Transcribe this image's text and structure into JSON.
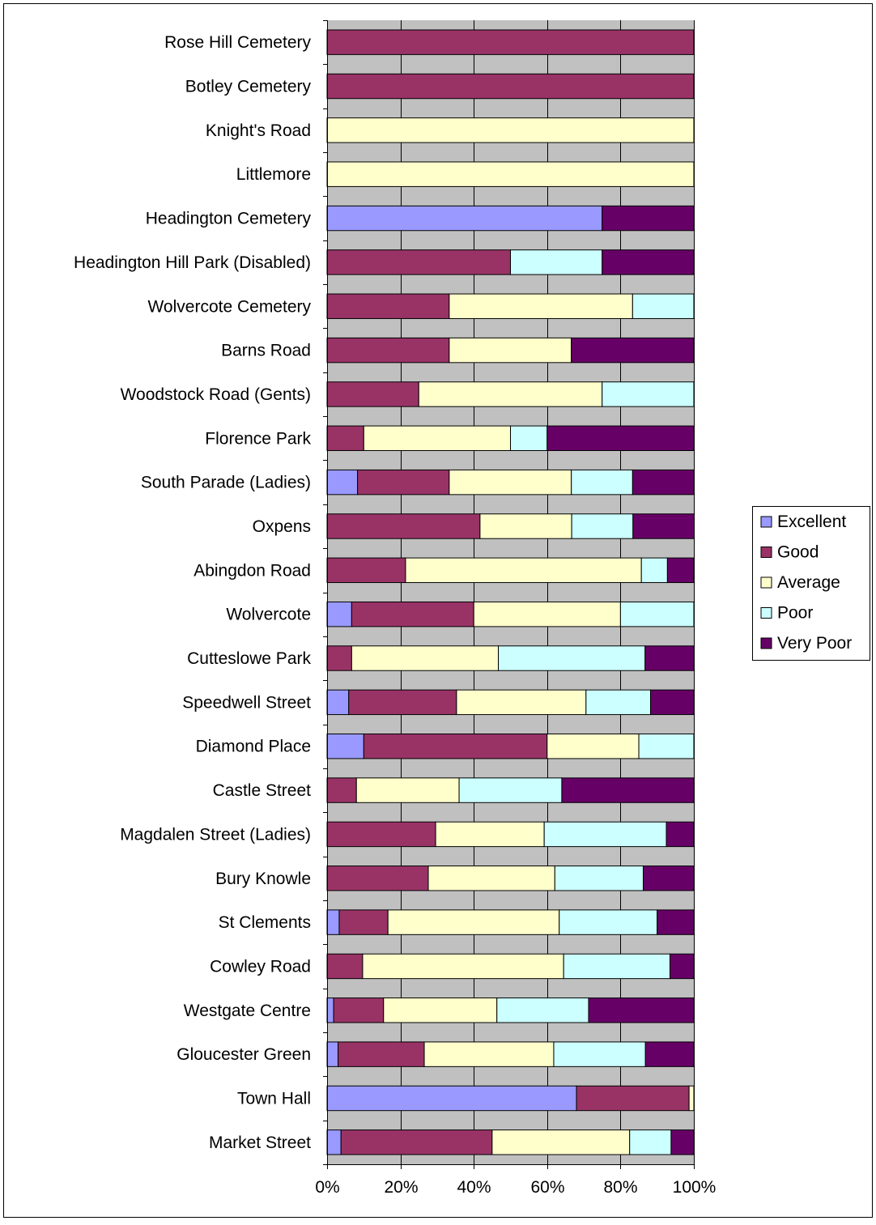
{
  "colors": {
    "plot_background": "#c0c0c0",
    "gridline": "#000000",
    "excellent": "#9999ff",
    "good": "#993366",
    "average": "#ffffcc",
    "poor": "#ccffff",
    "very_poor": "#660066"
  },
  "chart_data": {
    "type": "bar",
    "orientation": "horizontal",
    "stacking": "percent",
    "title": "",
    "xlabel": "",
    "ylabel": "",
    "xlim": [
      0,
      100
    ],
    "x_ticks": [
      "0%",
      "20%",
      "40%",
      "60%",
      "80%",
      "100%"
    ],
    "grid": true,
    "legend_position": "right",
    "categories": [
      "Rose Hill Cemetery",
      "Botley Cemetery",
      "Knight's Road",
      "Littlemore",
      "Headington Cemetery",
      "Headington Hill Park (Disabled)",
      "Wolvercote Cemetery",
      "Barns Road",
      "Woodstock Road (Gents)",
      "Florence Park",
      "South Parade (Ladies)",
      "Oxpens",
      "Abingdon Road",
      "Wolvercote",
      "Cutteslowe Park",
      "Speedwell Street",
      "Diamond Place",
      "Castle Street",
      "Magdalen Street (Ladies)",
      "Bury Knowle",
      "St Clements",
      "Cowley Road",
      "Westgate Centre",
      "Gloucester Green",
      "Town Hall",
      "Market Street"
    ],
    "series": [
      {
        "name": "Excellent",
        "color": "#9999ff",
        "values": [
          0,
          0,
          0,
          0,
          75,
          0,
          0,
          0,
          0,
          0,
          8.3,
          0,
          0,
          6.7,
          0,
          5.9,
          10,
          0,
          0,
          0,
          3.3,
          0,
          1.8,
          3,
          68,
          3.8
        ]
      },
      {
        "name": "Good",
        "color": "#993366",
        "values": [
          100,
          100,
          0,
          0,
          0,
          50,
          33.3,
          33.3,
          25,
          10,
          25,
          41.7,
          21.4,
          33.3,
          6.7,
          29.4,
          50,
          8,
          29.6,
          27.6,
          13.3,
          9.7,
          13.6,
          23.5,
          30.7,
          41.2
        ]
      },
      {
        "name": "Average",
        "color": "#ffffcc",
        "values": [
          0,
          0,
          100,
          100,
          0,
          0,
          50,
          33.3,
          50,
          40,
          33.3,
          25,
          64.3,
          40,
          40,
          35.3,
          25,
          28,
          29.6,
          34.5,
          46.7,
          54.8,
          30.9,
          35.3,
          1.3,
          37.5
        ]
      },
      {
        "name": "Poor",
        "color": "#ccffff",
        "values": [
          0,
          0,
          0,
          0,
          0,
          25,
          16.7,
          0,
          25,
          10,
          16.7,
          16.7,
          7.1,
          20,
          40,
          17.6,
          15,
          28,
          33.3,
          24.1,
          26.7,
          29,
          25,
          25,
          0,
          11.3
        ]
      },
      {
        "name": "Very Poor",
        "color": "#660066",
        "values": [
          0,
          0,
          0,
          0,
          25,
          25,
          0,
          33.3,
          0,
          40,
          16.7,
          16.7,
          7.1,
          0,
          13.3,
          11.8,
          0,
          36,
          7.4,
          13.8,
          10,
          6.5,
          28.7,
          13.2,
          0,
          6.2
        ]
      }
    ]
  }
}
